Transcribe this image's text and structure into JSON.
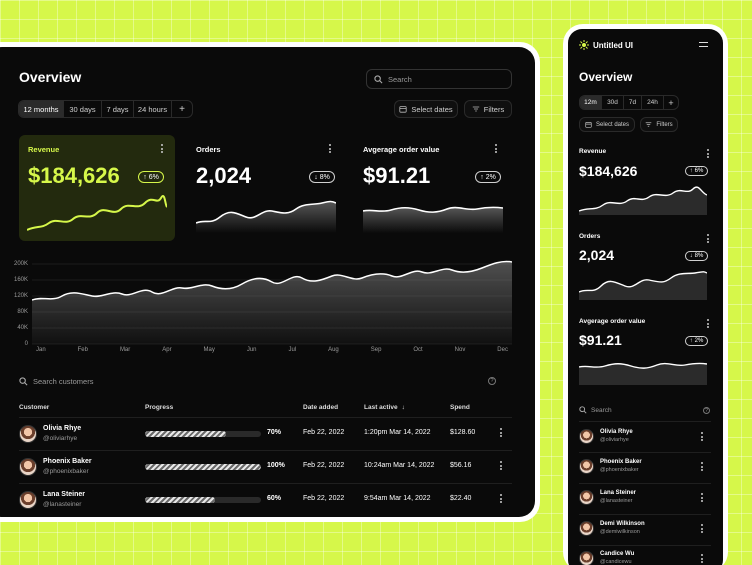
{
  "desktop": {
    "title": "Overview",
    "search_placeholder": "Search",
    "periods": [
      "12 months",
      "30 days",
      "7 days",
      "24 hours"
    ],
    "select_dates": "Select dates",
    "filters": "Filters",
    "cards": [
      {
        "label": "Revenue",
        "value": "$184,626",
        "change": "6%",
        "dir": "up"
      },
      {
        "label": "Orders",
        "value": "2,024",
        "change": "8%",
        "dir": "down"
      },
      {
        "label": "Avgerage order value",
        "value": "$91.21",
        "change": "2%",
        "dir": "up"
      }
    ],
    "chart": {
      "y_ticks": [
        "200K",
        "160K",
        "120K",
        "80K",
        "40K",
        "0"
      ],
      "x_ticks": [
        "Jan",
        "Feb",
        "Mar",
        "Apr",
        "May",
        "Jun",
        "Jul",
        "Aug",
        "Sep",
        "Oct",
        "Nov",
        "Dec"
      ]
    },
    "search_customers": "Search customers",
    "table": {
      "headers": [
        "Customer",
        "Progress",
        "Date added",
        "Last active",
        "Spend"
      ],
      "rows": [
        {
          "name": "Olivia Rhye",
          "handle": "@oliviarhye",
          "progress": 70,
          "progress_label": "70%",
          "date": "Feb 22, 2022",
          "last": "1:20pm Mar 14, 2022",
          "spend": "$128.60"
        },
        {
          "name": "Phoenix Baker",
          "handle": "@phoenixbaker",
          "progress": 100,
          "progress_label": "100%",
          "date": "Feb 22, 2022",
          "last": "10:24am Mar 14, 2022",
          "spend": "$56.16"
        },
        {
          "name": "Lana Steiner",
          "handle": "@lanasteiner",
          "progress": 60,
          "progress_label": "60%",
          "date": "Feb 22, 2022",
          "last": "9:54am Mar 14, 2022",
          "spend": "$22.40"
        }
      ]
    }
  },
  "mobile": {
    "brand": "Untitled UI",
    "title": "Overview",
    "periods": [
      "12m",
      "30d",
      "7d",
      "24h"
    ],
    "select_dates": "Select dates",
    "filters": "Filters",
    "cards": [
      {
        "label": "Revenue",
        "value": "$184,626",
        "change": "6%",
        "dir": "up"
      },
      {
        "label": "Orders",
        "value": "2,024",
        "change": "8%",
        "dir": "down"
      },
      {
        "label": "Avgerage order value",
        "value": "$91.21",
        "change": "2%",
        "dir": "up"
      }
    ],
    "search_placeholder": "Search",
    "customers": [
      {
        "name": "Olivia Rhye",
        "handle": "@oliviarhye"
      },
      {
        "name": "Phoenix Baker",
        "handle": "@phoenixbaker"
      },
      {
        "name": "Lana Steiner",
        "handle": "@lanasteiner"
      },
      {
        "name": "Demi Wilkinson",
        "handle": "@demiwilkinson"
      },
      {
        "name": "Candice Wu",
        "handle": "@candicewu"
      }
    ]
  },
  "colors": {
    "accent": "#d6f74a",
    "panel": "#0a0a0a",
    "card_highlight": "#2a3310"
  }
}
